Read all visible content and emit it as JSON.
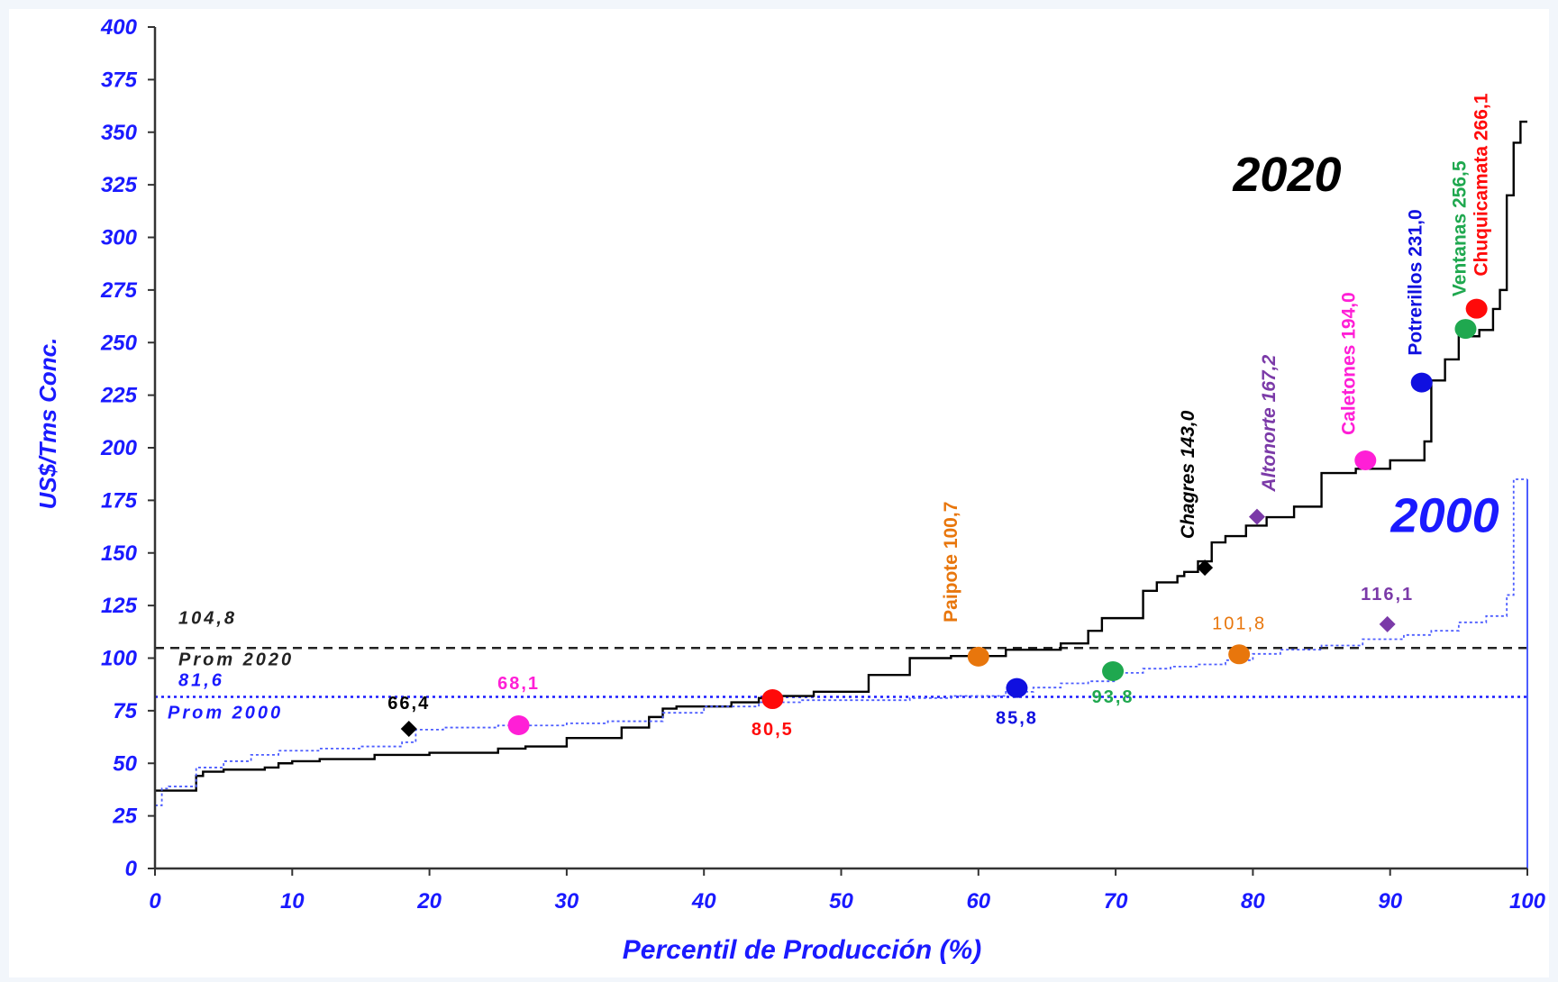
{
  "chart_data": {
    "type": "line",
    "xlabel": "Percentil de Producción (%)",
    "ylabel": "US$/Tms Conc.",
    "xlim": [
      0,
      100
    ],
    "ylim": [
      0,
      400
    ],
    "x_ticks": [
      0,
      10,
      20,
      30,
      40,
      50,
      60,
      70,
      80,
      90,
      100
    ],
    "y_ticks": [
      0,
      25,
      50,
      75,
      100,
      125,
      150,
      175,
      200,
      225,
      250,
      275,
      300,
      325,
      350,
      375,
      400
    ],
    "grid": false,
    "series": [
      {
        "name": "2020",
        "color": "#000000",
        "style": "solid-step",
        "x": [
          0,
          3,
          3.5,
          5,
          8,
          9,
          10,
          12,
          16,
          20,
          25,
          27,
          30,
          34,
          36,
          37,
          38,
          42,
          44,
          45,
          48,
          52,
          55,
          58,
          62,
          66,
          68,
          69,
          72,
          73,
          74.5,
          75,
          76,
          77,
          78,
          79.5,
          81,
          83,
          85,
          87.5,
          90,
          92.5,
          93,
          94,
          95,
          96.5,
          97.5,
          98,
          98.5,
          99,
          99.5,
          100
        ],
        "y": [
          37,
          44,
          46,
          47,
          48,
          50,
          51,
          52,
          54,
          55,
          57,
          58,
          62,
          67,
          72,
          76,
          77,
          79,
          81,
          82,
          84,
          92,
          100,
          101,
          104,
          107,
          113,
          119,
          132,
          136,
          139,
          141,
          146,
          155,
          158,
          163,
          167,
          172,
          188,
          190,
          194,
          203,
          232,
          242,
          253,
          256,
          266,
          275,
          320,
          345,
          355,
          355
        ]
      },
      {
        "name": "2000",
        "color": "#4d5dff",
        "style": "dotted-step",
        "x": [
          0,
          0.5,
          1,
          3,
          5,
          7,
          9,
          12,
          15,
          18,
          19,
          21,
          25,
          30,
          33,
          37,
          40,
          44,
          47,
          55,
          58,
          62,
          64,
          66,
          68,
          70,
          72,
          74,
          76,
          78,
          80,
          82,
          85,
          88,
          91,
          93,
          95,
          97,
          98.5,
          99,
          100
        ],
        "y": [
          30,
          38,
          39,
          48,
          51,
          54,
          56,
          57,
          58,
          60,
          66,
          67,
          68,
          69,
          70,
          74,
          77,
          79,
          80,
          81,
          82,
          84,
          86,
          88,
          89,
          93,
          95,
          96,
          97,
          99,
          102,
          104,
          106,
          109,
          111,
          113,
          117,
          120,
          130,
          185,
          185
        ]
      }
    ],
    "reference_lines": [
      {
        "label": "Prom 2020",
        "value_label": "104,8",
        "y": 104.8,
        "color": "#222222"
      },
      {
        "label": "Prom 2000",
        "value_label": "81,6",
        "y": 81.6,
        "color": "#1a1aff"
      }
    ],
    "series_labels": [
      {
        "text": "2020",
        "x": 82.5,
        "y": 322,
        "color": "#000000"
      },
      {
        "text": "2000",
        "x": 94,
        "y": 160,
        "color": "#1a1aff"
      }
    ],
    "markers_2020": [
      {
        "name": "Paipote",
        "label": "Paipote 100,7",
        "x": 60,
        "y": 100.7,
        "color": "#e8760c",
        "shape": "circle"
      },
      {
        "name": "Chagres",
        "label": "Chagres 143,0",
        "x": 76.5,
        "y": 143,
        "color": "#000000",
        "shape": "diamond"
      },
      {
        "name": "Altonorte",
        "label": "Altonorte 167,2",
        "x": 80.3,
        "y": 167.2,
        "color": "#7b3aa8",
        "shape": "diamond"
      },
      {
        "name": "Caletones",
        "label": "Caletones 194,0",
        "x": 88.2,
        "y": 194,
        "color": "#ff1fd6",
        "shape": "circle"
      },
      {
        "name": "Potrerillos",
        "label": "Potrerillos 231,0",
        "x": 92.3,
        "y": 231,
        "color": "#1010e0",
        "shape": "circle"
      },
      {
        "name": "Ventanas",
        "label": "Ventanas 256,5",
        "x": 95.5,
        "y": 256.5,
        "color": "#1fa84f",
        "shape": "circle"
      },
      {
        "name": "Chuquicamata",
        "label": "Chuquicamata 266,1",
        "x": 96.3,
        "y": 266.1,
        "color": "#ff0a0a",
        "shape": "circle"
      }
    ],
    "markers_2000": [
      {
        "label": "66,4",
        "x": 18.5,
        "y": 66.4,
        "color": "#000000",
        "shape": "diamond"
      },
      {
        "label": "68,1",
        "x": 26.5,
        "y": 68.1,
        "color": "#ff1fd6",
        "shape": "circle"
      },
      {
        "label": "80,5",
        "x": 45,
        "y": 80.5,
        "color": "#ff0a0a",
        "shape": "circle"
      },
      {
        "label": "85,8",
        "x": 62.8,
        "y": 85.8,
        "color": "#1010e0",
        "shape": "circle"
      },
      {
        "label": "93,8",
        "x": 69.8,
        "y": 93.8,
        "color": "#1fa84f",
        "shape": "circle"
      },
      {
        "label": "101,8",
        "x": 79,
        "y": 101.8,
        "color": "#e8760c",
        "shape": "circle"
      },
      {
        "label": "116,1",
        "x": 89.8,
        "y": 116.1,
        "color": "#7b3aa8",
        "shape": "diamond"
      }
    ]
  }
}
